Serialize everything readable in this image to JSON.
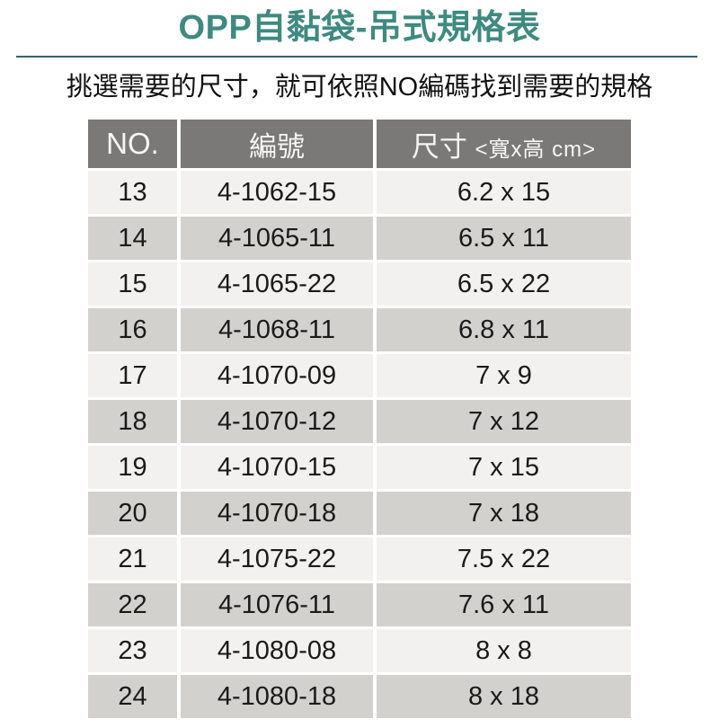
{
  "page": {
    "title": "OPP自黏袋-吊式規格表",
    "subtitle": "挑選需要的尺寸，就可依照NO編碼找到需要的規格"
  },
  "colors": {
    "title_teal": "#3E8A80",
    "divider_line": "#33616F",
    "header_bg": "#7B7977",
    "header_text": "#F7F6F4",
    "row_light": "#F2F1EF",
    "row_dark": "#D2D1CE",
    "body_text": "#1A1A1A"
  },
  "table": {
    "headers": {
      "no": "NO.",
      "code": "編號",
      "size_main": "尺寸",
      "size_sub": "<寬x高 cm>"
    },
    "rows": [
      {
        "no": "13",
        "code": "4-1062-15",
        "size": "6.2 x 15"
      },
      {
        "no": "14",
        "code": "4-1065-11",
        "size": "6.5 x 11"
      },
      {
        "no": "15",
        "code": "4-1065-22",
        "size": "6.5 x 22"
      },
      {
        "no": "16",
        "code": "4-1068-11",
        "size": "6.8 x 11"
      },
      {
        "no": "17",
        "code": "4-1070-09",
        "size": "7 x 9"
      },
      {
        "no": "18",
        "code": "4-1070-12",
        "size": "7 x 12"
      },
      {
        "no": "19",
        "code": "4-1070-15",
        "size": "7 x 15"
      },
      {
        "no": "20",
        "code": "4-1070-18",
        "size": "7 x 18"
      },
      {
        "no": "21",
        "code": "4-1075-22",
        "size": "7.5 x 22"
      },
      {
        "no": "22",
        "code": "4-1076-11",
        "size": "7.6 x 11"
      },
      {
        "no": "23",
        "code": "4-1080-08",
        "size": "8 x 8"
      },
      {
        "no": "24",
        "code": "4-1080-18",
        "size": "8 x 18"
      }
    ]
  }
}
